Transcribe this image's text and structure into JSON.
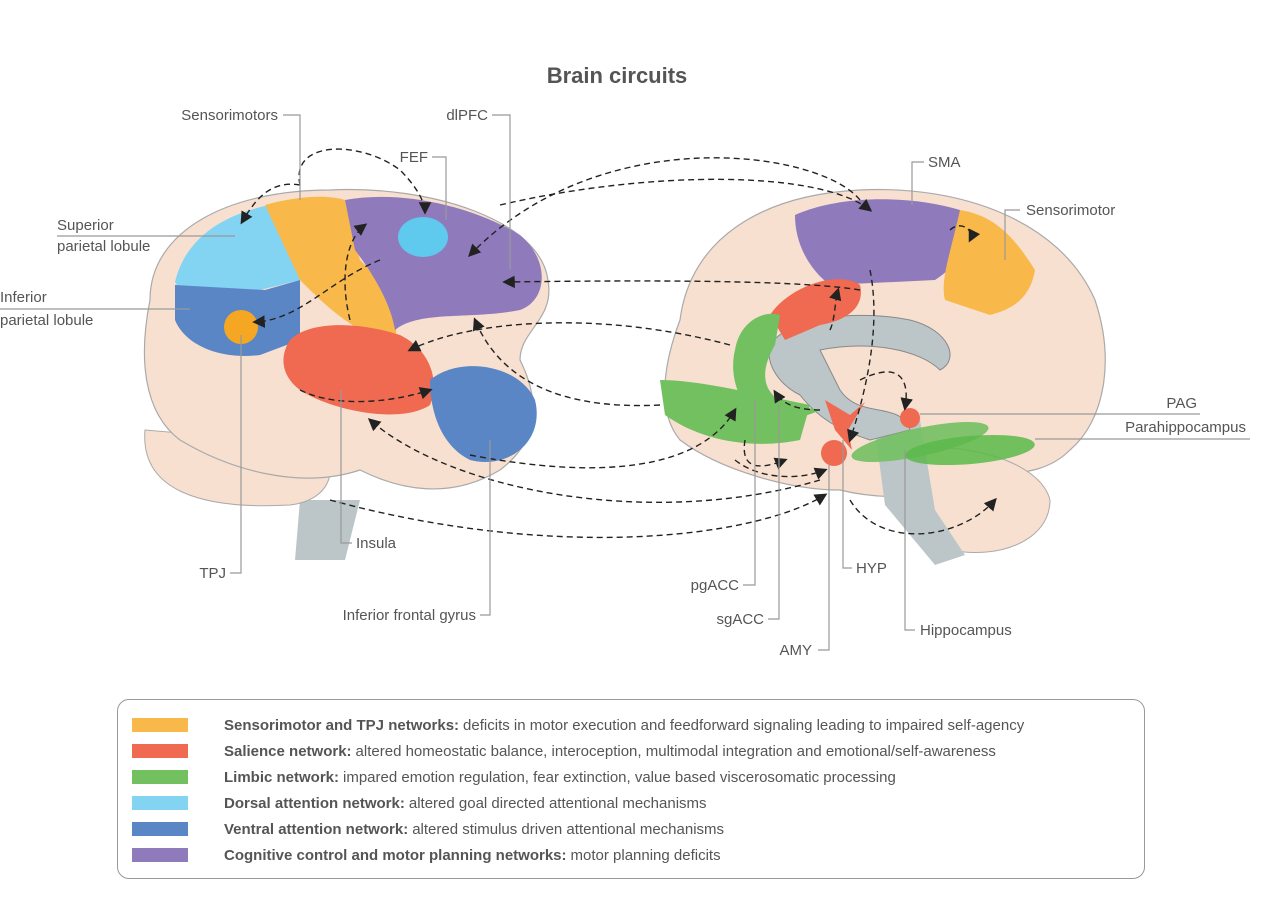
{
  "title": "Brain circuits",
  "colors": {
    "sensorimotor": "#f9b94a",
    "salience": "#ef6a50",
    "limbic": "#72c060",
    "dorsal": "#83d3f2",
    "ventral": "#5b86c6",
    "cognitive": "#8f7abc",
    "brain": "#f7e0d0",
    "gray": "#bcc6c9"
  },
  "labels": {
    "left": {
      "sensorimotors": "Sensorimotors",
      "dlpfc": "dlPFC",
      "fef": "FEF",
      "spl_1": "Superior",
      "spl_2": "parietal lobule",
      "ipl_1": "Inferior",
      "ipl_2": "parietal lobule",
      "tpj": "TPJ",
      "insula": "Insula",
      "ifg": "Inferior frontal gyrus"
    },
    "right": {
      "sma": "SMA",
      "sensorimotor": "Sensorimotor",
      "pag": "PAG",
      "parahippocampus": "Parahippocampus",
      "pgacc": "pgACC",
      "sgacc": "sgACC",
      "amy": "AMY",
      "hyp": "HYP",
      "hippocampus": "Hippocampus"
    }
  },
  "legend": [
    {
      "key": "sensorimotor",
      "bold": "Sensorimotor and TPJ networks:",
      "text": "deficits in motor execution and feedforward signaling leading to impaired self-agency"
    },
    {
      "key": "salience",
      "bold": "Salience network:",
      "text": "altered homeostatic balance, interoception, multimodal integration and emotional/self-awareness"
    },
    {
      "key": "limbic",
      "bold": "Limbic network:",
      "text": "impared emotion regulation, fear extinction, value based viscerosomatic processing"
    },
    {
      "key": "dorsal",
      "bold": "Dorsal attention network:",
      "text": "altered goal directed attentional mechanisms"
    },
    {
      "key": "ventral",
      "bold": "Ventral attention network:",
      "text": "altered stimulus driven attentional mechanisms"
    },
    {
      "key": "cognitive",
      "bold": "Cognitive control and motor planning networks:",
      "text": "motor planning deficits"
    }
  ]
}
